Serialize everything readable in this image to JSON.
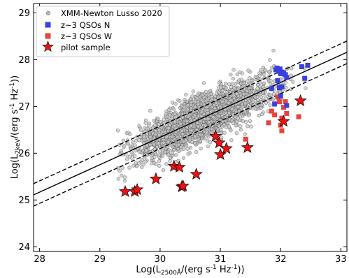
{
  "chart_data": {
    "type": "scatter",
    "xlabel": "Log(L_{2500Å}/(erg s^{-1} Hz^{-1}))",
    "ylabel": "Log(L_{2keV}/(erg s^{-1} Hz^{-1}))",
    "xlim": [
      27.9,
      33.1
    ],
    "ylim": [
      23.9,
      29.2
    ],
    "xticks": [
      "28",
      "29",
      "30",
      "31",
      "32",
      "33"
    ],
    "yticks": [
      "24",
      "25",
      "26",
      "27",
      "28",
      "29"
    ],
    "grid": false,
    "legend_position": "top-left",
    "legend": [
      {
        "label": "XMM-Newton Lusso 2020",
        "marker": "circle",
        "color": "#bbbbbb"
      },
      {
        "label": "z~3 QSOs N",
        "marker": "square",
        "color": "#3b3fe0"
      },
      {
        "label": "z~3 QSOs W",
        "marker": "square",
        "color": "#e8423c"
      },
      {
        "label": "pilot sample",
        "marker": "star",
        "color": "#ee1111"
      }
    ],
    "relation": {
      "slope": 0.586,
      "intercept_at_x30": 26.34,
      "dispersion": 0.24,
      "x_range": [
        27.9,
        33.1
      ]
    },
    "series": [
      {
        "name": "XMM-Newton Lusso 2020",
        "marker": "circle",
        "n_points": 2400,
        "x_range": [
          29.3,
          32.5
        ],
        "x_mean": 30.7,
        "scatter_dex": 0.24,
        "seed": 7
      },
      {
        "name": "z~3 QSOs N",
        "marker": "square",
        "color": "#3b3fe0",
        "x": [
          31.92,
          31.94,
          31.97,
          31.99,
          32.0,
          32.05,
          32.08,
          32.1,
          31.95,
          31.98,
          32.02,
          31.85,
          32.35,
          32.45,
          32.4,
          31.9,
          32.1,
          32.0
        ],
        "y": [
          27.78,
          27.82,
          27.75,
          27.8,
          27.7,
          27.72,
          27.68,
          27.62,
          27.55,
          27.4,
          27.42,
          27.38,
          27.85,
          27.88,
          27.6,
          27.05,
          27.02,
          27.22
        ]
      },
      {
        "name": "z~3 QSOs W",
        "marker": "square",
        "color": "#e8423c",
        "x": [
          31.95,
          31.98,
          32.05,
          32.08,
          31.85,
          32.1,
          32.02,
          31.9,
          32.0,
          32.3,
          31.8,
          32.02,
          31.42
        ],
        "y": [
          27.2,
          27.1,
          26.98,
          27.1,
          26.9,
          26.85,
          26.75,
          26.82,
          26.6,
          26.78,
          26.65,
          26.48,
          26.3
        ]
      },
      {
        "name": "pilot sample",
        "marker": "star",
        "color": "#ee1111",
        "x": [
          29.42,
          29.58,
          29.62,
          29.93,
          30.23,
          30.32,
          30.36,
          30.38,
          30.6,
          30.92,
          30.98,
          31.0,
          31.1,
          31.45,
          32.05,
          32.33
        ],
        "y": [
          25.18,
          25.18,
          25.22,
          25.45,
          25.72,
          25.7,
          25.28,
          25.3,
          25.55,
          26.36,
          26.22,
          25.97,
          26.1,
          26.12,
          26.68,
          27.12
        ]
      }
    ]
  }
}
